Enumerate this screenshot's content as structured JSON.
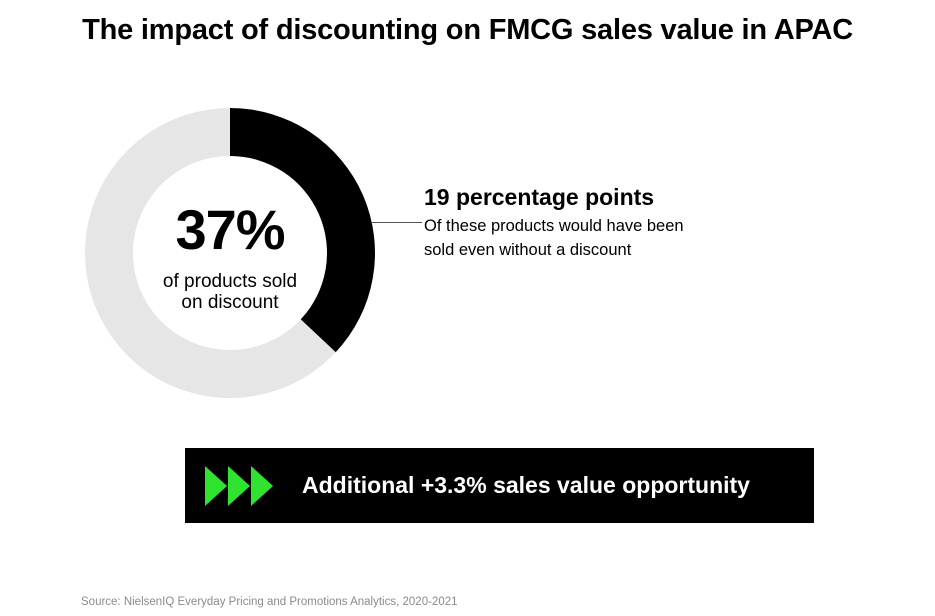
{
  "title": "The impact of discounting on FMCG sales value in APAC",
  "chart_data": {
    "type": "pie",
    "slices": [
      {
        "label": "of products sold on discount",
        "value": 37,
        "color": "#000000"
      },
      {
        "label": "",
        "value": 63,
        "color": "#e6e6e6"
      }
    ],
    "center_value": "37%",
    "center_caption_lines": [
      "of products sold",
      "on discount"
    ],
    "annotations": [
      {
        "heading": "19 percentage points",
        "text": "Of these products would have been sold even without a discount"
      }
    ]
  },
  "callout": {
    "heading": "19 percentage points",
    "line1": "Of these products would have been",
    "line2": "sold even without a discount"
  },
  "banner": {
    "text": "Additional +3.3% sales value opportunity",
    "icon": "triple-forward-arrow-icon",
    "icon_color": "#2fe32f",
    "background": "#000000"
  },
  "source": "Source: NielsenIQ Everyday Pricing and Promotions Analytics, 2020-2021"
}
